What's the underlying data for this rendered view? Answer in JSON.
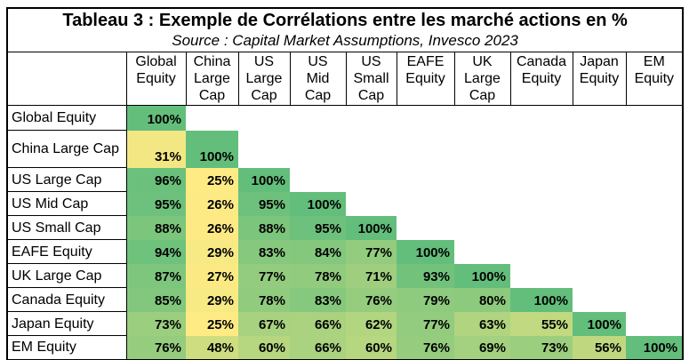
{
  "title": "Tableau 3 : Exemple de Corrélations entre les marché actions en %",
  "source": "Source : Capital Market Assumptions, Invesco 2023",
  "chart_data": {
    "type": "heatmap",
    "subtype": "correlation-matrix",
    "unit": "%",
    "title": "Tableau 3 : Exemple de Corrélations entre les marché actions en %",
    "subtitle": "Source : Capital Market Assumptions, Invesco 2023",
    "labels": [
      "Global Equity",
      "China Large Cap",
      "US Large Cap",
      "US Mid Cap",
      "US Small Cap",
      "EAFE Equity",
      "UK Large Cap",
      "Canada Equity",
      "Japan Equity",
      "EM Equity"
    ],
    "matrix": [
      [
        100
      ],
      [
        31,
        100
      ],
      [
        96,
        25,
        100
      ],
      [
        95,
        26,
        95,
        100
      ],
      [
        88,
        26,
        88,
        95,
        100
      ],
      [
        94,
        29,
        83,
        84,
        77,
        100
      ],
      [
        87,
        27,
        77,
        78,
        71,
        93,
        100
      ],
      [
        85,
        29,
        78,
        83,
        76,
        79,
        80,
        100
      ],
      [
        73,
        25,
        67,
        66,
        62,
        77,
        63,
        55,
        100
      ],
      [
        76,
        48,
        60,
        66,
        60,
        76,
        69,
        73,
        56,
        100
      ]
    ],
    "color_scale": {
      "min_value": 25,
      "min_color": "#FFEB84",
      "max_value": 100,
      "max_color": "#63BE7B"
    },
    "layout": {
      "shape": "lower-triangular",
      "empty_color": "#FFFFFF",
      "value_text_color": "#000000",
      "grid": "borders on labels and headers only"
    }
  }
}
